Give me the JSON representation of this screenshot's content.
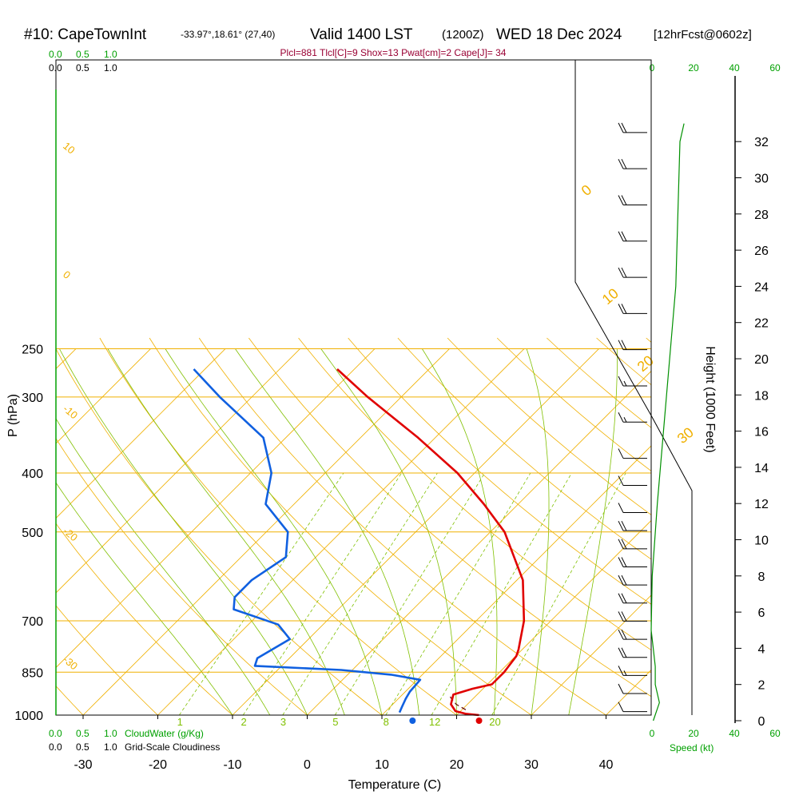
{
  "header": {
    "station": "#10: CapeTownInt",
    "location": "-33.97°,18.61° (27,40)",
    "valid_time": "Valid 1400 LST",
    "zulu_time": "(1200Z)",
    "date": "WED 18 Dec 2024",
    "forecast_tag": "[12hrFcst@0602z]"
  },
  "indices_line": "Plcl=881 Tlcl[C]=9 Shox=13 Pwat[cm]=2 Cape[J]= 34",
  "scales": {
    "cloud_water_top": [
      "0.0",
      "0.5",
      "1.0"
    ],
    "cloudiness_top": [
      "0.0",
      "0.5",
      "1.0"
    ],
    "cloud_water_bottom": [
      "0.0",
      "0.5",
      "1.0"
    ],
    "cloud_water_label": "CloudWater (g/Kg)",
    "cloudiness_bottom": [
      "0.0",
      "0.5",
      "1.0"
    ],
    "cloudiness_label": "Grid-Scale Cloudiness",
    "speed_ticks_top": [
      "0",
      "20",
      "40",
      "60"
    ],
    "speed_ticks_bottom": [
      "0",
      "20",
      "40",
      "60"
    ],
    "speed_label": "Speed (kt)"
  },
  "colors": {
    "temperature": "#e00000",
    "dewpoint": "#1060e0",
    "isobar": "#f0b000",
    "dry_adiabat": "#f0b000",
    "moist_adiabat": "#80c000",
    "mixing_ratio": "#80c000",
    "speed_profile": "#009000",
    "labels_green": "#00a000",
    "indices": "#990033"
  },
  "chart_data": {
    "type": "line",
    "title": "Skew-T log-P sounding",
    "xlabel": "Temperature (C)",
    "ylabel": "P (hPa)",
    "right_axis_label": "Height (1000 Feet)",
    "x_ticks": [
      -30,
      -20,
      -10,
      0,
      10,
      20,
      30,
      40
    ],
    "pressure_ticks": [
      250,
      300,
      400,
      500,
      700,
      850,
      1000
    ],
    "height_ticks_kft": [
      0,
      2,
      4,
      6,
      8,
      10,
      12,
      14,
      16,
      18,
      20,
      22,
      24,
      26,
      28,
      30,
      32
    ],
    "series": [
      {
        "name": "Temperature",
        "points": [
          [
            1000,
            23.0
          ],
          [
            995,
            21.0
          ],
          [
            985,
            19.3
          ],
          [
            960,
            17.8
          ],
          [
            925,
            16.8
          ],
          [
            905,
            18.6
          ],
          [
            890,
            20.6
          ],
          [
            850,
            20.6
          ],
          [
            800,
            20.1
          ],
          [
            780,
            19.5
          ],
          [
            700,
            16.4
          ],
          [
            600,
            10.8
          ],
          [
            500,
            1.9
          ],
          [
            450,
            -4.6
          ],
          [
            400,
            -12.3
          ],
          [
            350,
            -22.3
          ],
          [
            300,
            -34.5
          ],
          [
            270,
            -42.3
          ]
        ]
      },
      {
        "name": "Dewpoint",
        "points": [
          [
            990,
            12.0
          ],
          [
            970,
            11.6
          ],
          [
            940,
            11.0
          ],
          [
            915,
            10.6
          ],
          [
            875,
            10.4
          ],
          [
            858,
            5.8
          ],
          [
            843,
            -1.5
          ],
          [
            830,
            -13.6
          ],
          [
            806,
            -14.3
          ],
          [
            750,
            -12.5
          ],
          [
            710,
            -16.0
          ],
          [
            670,
            -24.0
          ],
          [
            640,
            -25.5
          ],
          [
            600,
            -25.5
          ],
          [
            550,
            -24.0
          ],
          [
            500,
            -27.1
          ],
          [
            450,
            -33.8
          ],
          [
            400,
            -37.2
          ],
          [
            350,
            -43.0
          ],
          [
            300,
            -54.3
          ],
          [
            270,
            -61.5
          ]
        ]
      },
      {
        "name": "Parcel",
        "points": [
          [
            980,
            20.5
          ],
          [
            960,
            18.5
          ],
          [
            935,
            16.8
          ],
          [
            925,
            16.5
          ]
        ]
      }
    ],
    "surface_temperature": 23.0,
    "surface_dewpoint": 14.1,
    "dry_adiabat_labels": [
      "10",
      "0",
      "-10",
      "-20",
      "-30",
      "0",
      "10",
      "20",
      "30"
    ],
    "mixing_ratio_labels": [
      "1",
      "2",
      "3",
      "5",
      "8",
      "12",
      "20"
    ],
    "wind_speed_profile_kt": [
      [
        0,
        1.0
      ],
      [
        1,
        4.0
      ],
      [
        2,
        2.0
      ],
      [
        3,
        2.0
      ],
      [
        4,
        1.0
      ],
      [
        5,
        0.0
      ],
      [
        8,
        0.5
      ],
      [
        12,
        3.0
      ],
      [
        16,
        6.0
      ],
      [
        20,
        9.0
      ],
      [
        24,
        12.0
      ],
      [
        28,
        13.0
      ],
      [
        30,
        13.5
      ],
      [
        32,
        14.0
      ],
      [
        33,
        16.0
      ]
    ],
    "wind_barbs": [
      {
        "kft": 0.5,
        "speed": 10
      },
      {
        "kft": 1.5,
        "speed": 10
      },
      {
        "kft": 2.5,
        "speed": 15
      },
      {
        "kft": 3.5,
        "speed": 20
      },
      {
        "kft": 4.5,
        "speed": 20
      },
      {
        "kft": 5.5,
        "speed": 20
      },
      {
        "kft": 6.5,
        "speed": 20
      },
      {
        "kft": 7.5,
        "speed": 20
      },
      {
        "kft": 8.5,
        "speed": 20
      },
      {
        "kft": 9.5,
        "speed": 20
      },
      {
        "kft": 10.5,
        "speed": 20
      },
      {
        "kft": 11.5,
        "speed": 10
      },
      {
        "kft": 13,
        "speed": 10
      },
      {
        "kft": 14.5,
        "speed": 10
      },
      {
        "kft": 16.5,
        "speed": 15
      },
      {
        "kft": 18.5,
        "speed": 15
      },
      {
        "kft": 20.5,
        "speed": 20
      },
      {
        "kft": 22.5,
        "speed": 20
      },
      {
        "kft": 24.5,
        "speed": 20
      },
      {
        "kft": 26.5,
        "speed": 20
      },
      {
        "kft": 28.5,
        "speed": 20
      },
      {
        "kft": 30.5,
        "speed": 20
      },
      {
        "kft": 32.5,
        "speed": 20
      }
    ]
  }
}
